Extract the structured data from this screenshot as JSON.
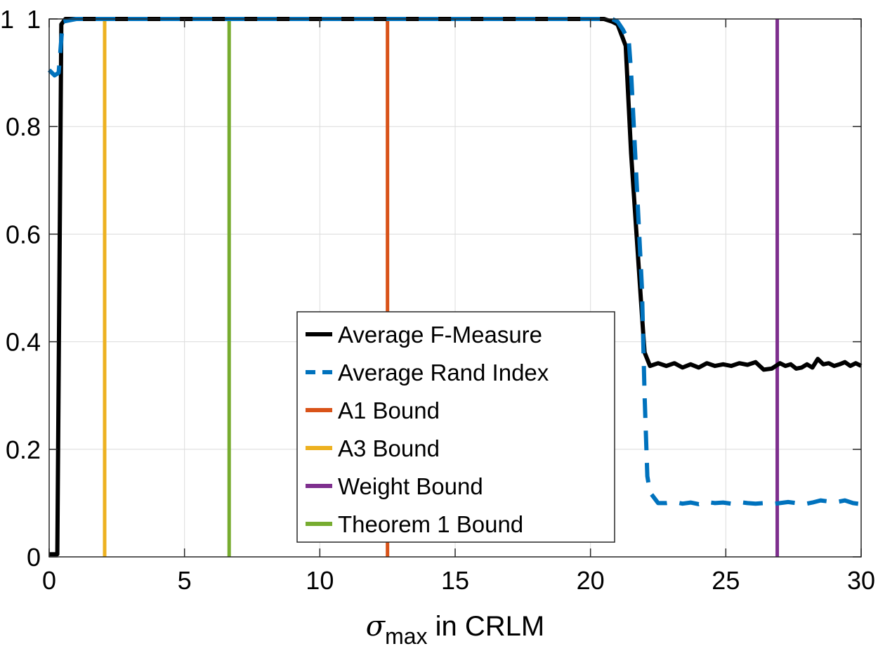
{
  "chart_data": {
    "type": "line",
    "title": "",
    "xlabel": {
      "symbol": "σ",
      "subscript": "max",
      "suffix": " in CRLM"
    },
    "ylabel": "",
    "xlim": [
      0,
      30
    ],
    "ylim": [
      0,
      1
    ],
    "grid": true,
    "legend_position": "center-bottom",
    "x_ticks": [
      0,
      5,
      10,
      15,
      20,
      25,
      30
    ],
    "y_ticks": [
      0,
      0.2,
      0.4,
      0.6,
      0.8,
      1
    ],
    "x_tick_labels": [
      "0",
      "5",
      "10",
      "15",
      "20",
      "25",
      "30"
    ],
    "y_tick_labels": [
      "0",
      "0.2",
      "0.4",
      "0.6",
      "0.8",
      "1"
    ],
    "y_top_extra_label": "1",
    "series": [
      {
        "name": "Average F-Measure",
        "color": "#000000",
        "dash": "solid",
        "x": [
          0,
          0.3,
          0.45,
          0.6,
          1,
          5,
          10,
          15,
          19,
          20.5,
          20.8,
          21.0,
          21.3,
          21.5,
          21.7,
          21.9,
          22.0,
          22.2,
          22.5,
          22.8,
          23.1,
          23.4,
          23.7,
          24.0,
          24.3,
          24.6,
          24.9,
          25.2,
          25.5,
          25.8,
          26.1,
          26.4,
          26.7,
          27.0,
          27.2,
          27.4,
          27.6,
          27.8,
          28.0,
          28.2,
          28.4,
          28.6,
          28.8,
          29.0,
          29.2,
          29.4,
          29.6,
          29.8,
          30.0
        ],
        "y": [
          0.005,
          0.005,
          0.99,
          1.0,
          1.0,
          1.0,
          1.0,
          1.0,
          1.0,
          1.0,
          0.995,
          0.99,
          0.95,
          0.75,
          0.6,
          0.45,
          0.38,
          0.355,
          0.36,
          0.355,
          0.36,
          0.352,
          0.358,
          0.352,
          0.36,
          0.355,
          0.358,
          0.355,
          0.36,
          0.357,
          0.362,
          0.348,
          0.35,
          0.36,
          0.355,
          0.358,
          0.35,
          0.352,
          0.358,
          0.352,
          0.368,
          0.358,
          0.36,
          0.355,
          0.358,
          0.362,
          0.355,
          0.36,
          0.355
        ]
      },
      {
        "name": "Average Rand Index",
        "color": "#0072BD",
        "dash": "dashed",
        "x": [
          0,
          0.2,
          0.35,
          0.5,
          1,
          5,
          10,
          15,
          20,
          20.8,
          21.0,
          21.2,
          21.3,
          21.4,
          21.5,
          21.7,
          21.9,
          22.0,
          22.1,
          22.2,
          22.5,
          22.8,
          23.1,
          23.4,
          23.7,
          24.0,
          24.3,
          24.6,
          24.9,
          25.2,
          25.5,
          25.8,
          26.1,
          26.4,
          26.7,
          27.0,
          27.3,
          27.6,
          27.9,
          28.2,
          28.5,
          28.8,
          29.1,
          29.4,
          29.7,
          30.0
        ],
        "y": [
          0.905,
          0.895,
          0.9,
          0.995,
          1.0,
          1.0,
          1.0,
          1.0,
          1.0,
          1.0,
          0.995,
          0.98,
          0.97,
          0.97,
          0.9,
          0.7,
          0.5,
          0.3,
          0.15,
          0.12,
          0.1,
          0.1,
          0.102,
          0.099,
          0.101,
          0.098,
          0.102,
          0.1,
          0.101,
          0.099,
          0.102,
          0.1,
          0.099,
          0.1,
          0.098,
          0.1,
          0.102,
          0.1,
          0.098,
          0.101,
          0.105,
          0.103,
          0.102,
          0.105,
          0.1,
          0.098
        ]
      },
      {
        "name": "A1 Bound",
        "color": "#D95319",
        "dash": "solid",
        "type": "vline",
        "x_value": 12.5
      },
      {
        "name": "A3 Bound",
        "color": "#EDB120",
        "dash": "solid",
        "type": "vline",
        "x_value": 2.05
      },
      {
        "name": "Weight Bound",
        "color": "#7E2F8E",
        "dash": "solid",
        "type": "vline",
        "x_value": 26.9
      },
      {
        "name": "Theorem 1 Bound",
        "color": "#77AC30",
        "dash": "solid",
        "type": "vline",
        "x_value": 6.65
      }
    ]
  }
}
